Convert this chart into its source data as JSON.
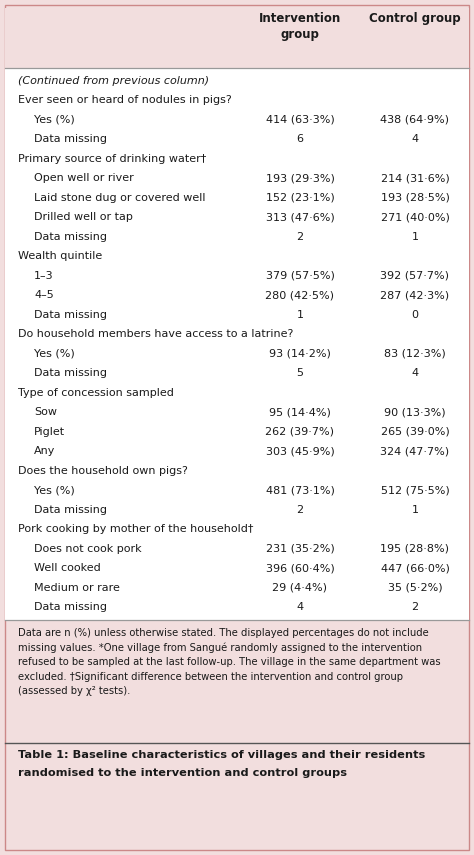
{
  "bg_color": "#f2dede",
  "table_bg": "#ffffff",
  "col_header1": "Intervention\ngroup",
  "col_header2": "Control group",
  "rows": [
    {
      "text": "(Continued from previous column)",
      "indent": 0,
      "type": "italic",
      "col1": "",
      "col2": ""
    },
    {
      "text": "Ever seen or heard of nodules in pigs?",
      "indent": 0,
      "type": "section",
      "col1": "",
      "col2": ""
    },
    {
      "text": "Yes (%)",
      "indent": 1,
      "type": "data",
      "col1": "414 (63·3%)",
      "col2": "438 (64·9%)"
    },
    {
      "text": "Data missing",
      "indent": 1,
      "type": "data",
      "col1": "6",
      "col2": "4"
    },
    {
      "text": "Primary source of drinking water†",
      "indent": 0,
      "type": "section",
      "col1": "",
      "col2": ""
    },
    {
      "text": "Open well or river",
      "indent": 1,
      "type": "data",
      "col1": "193 (29·3%)",
      "col2": "214 (31·6%)"
    },
    {
      "text": "Laid stone dug or covered well",
      "indent": 1,
      "type": "data",
      "col1": "152 (23·1%)",
      "col2": "193 (28·5%)"
    },
    {
      "text": "Drilled well or tap",
      "indent": 1,
      "type": "data",
      "col1": "313 (47·6%)",
      "col2": "271 (40·0%)"
    },
    {
      "text": "Data missing",
      "indent": 1,
      "type": "data",
      "col1": "2",
      "col2": "1"
    },
    {
      "text": "Wealth quintile",
      "indent": 0,
      "type": "section",
      "col1": "",
      "col2": ""
    },
    {
      "text": "1–3",
      "indent": 1,
      "type": "data",
      "col1": "379 (57·5%)",
      "col2": "392 (57·7%)"
    },
    {
      "text": "4–5",
      "indent": 1,
      "type": "data",
      "col1": "280 (42·5%)",
      "col2": "287 (42·3%)"
    },
    {
      "text": "Data missing",
      "indent": 1,
      "type": "data",
      "col1": "1",
      "col2": "0"
    },
    {
      "text": "Do household members have access to a latrine?",
      "indent": 0,
      "type": "section",
      "col1": "",
      "col2": ""
    },
    {
      "text": "Yes (%)",
      "indent": 1,
      "type": "data",
      "col1": "93 (14·2%)",
      "col2": "83 (12·3%)"
    },
    {
      "text": "Data missing",
      "indent": 1,
      "type": "data",
      "col1": "5",
      "col2": "4"
    },
    {
      "text": "Type of concession sampled",
      "indent": 0,
      "type": "section",
      "col1": "",
      "col2": ""
    },
    {
      "text": "Sow",
      "indent": 1,
      "type": "data",
      "col1": "95 (14·4%)",
      "col2": "90 (13·3%)"
    },
    {
      "text": "Piglet",
      "indent": 1,
      "type": "data",
      "col1": "262 (39·7%)",
      "col2": "265 (39·0%)"
    },
    {
      "text": "Any",
      "indent": 1,
      "type": "data",
      "col1": "303 (45·9%)",
      "col2": "324 (47·7%)"
    },
    {
      "text": "Does the household own pigs?",
      "indent": 0,
      "type": "section",
      "col1": "",
      "col2": ""
    },
    {
      "text": "Yes (%)",
      "indent": 1,
      "type": "data",
      "col1": "481 (73·1%)",
      "col2": "512 (75·5%)"
    },
    {
      "text": "Data missing",
      "indent": 1,
      "type": "data",
      "col1": "2",
      "col2": "1"
    },
    {
      "text": "Pork cooking by mother of the household†",
      "indent": 0,
      "type": "section",
      "col1": "",
      "col2": ""
    },
    {
      "text": "Does not cook pork",
      "indent": 1,
      "type": "data",
      "col1": "231 (35·2%)",
      "col2": "195 (28·8%)"
    },
    {
      "text": "Well cooked",
      "indent": 1,
      "type": "data",
      "col1": "396 (60·4%)",
      "col2": "447 (66·0%)"
    },
    {
      "text": "Medium or rare",
      "indent": 1,
      "type": "data",
      "col1": "29 (4·4%)",
      "col2": "35 (5·2%)"
    },
    {
      "text": "Data missing",
      "indent": 1,
      "type": "data",
      "col1": "4",
      "col2": "2"
    }
  ],
  "footnote_lines": [
    "Data are n (%) unless otherwise stated. The displayed percentages do not include",
    "missing values. *One village from Sangué randomly assigned to the intervention",
    "refused to be sampled at the last follow-up. The village in the same department was",
    "excluded. †Significant difference between the intervention and control group",
    "(assessed by χ² tests)."
  ],
  "caption_line1": "Table 1: Baseline characteristics of villages and their residents",
  "caption_line2": "randomised to the intervention and control groups"
}
